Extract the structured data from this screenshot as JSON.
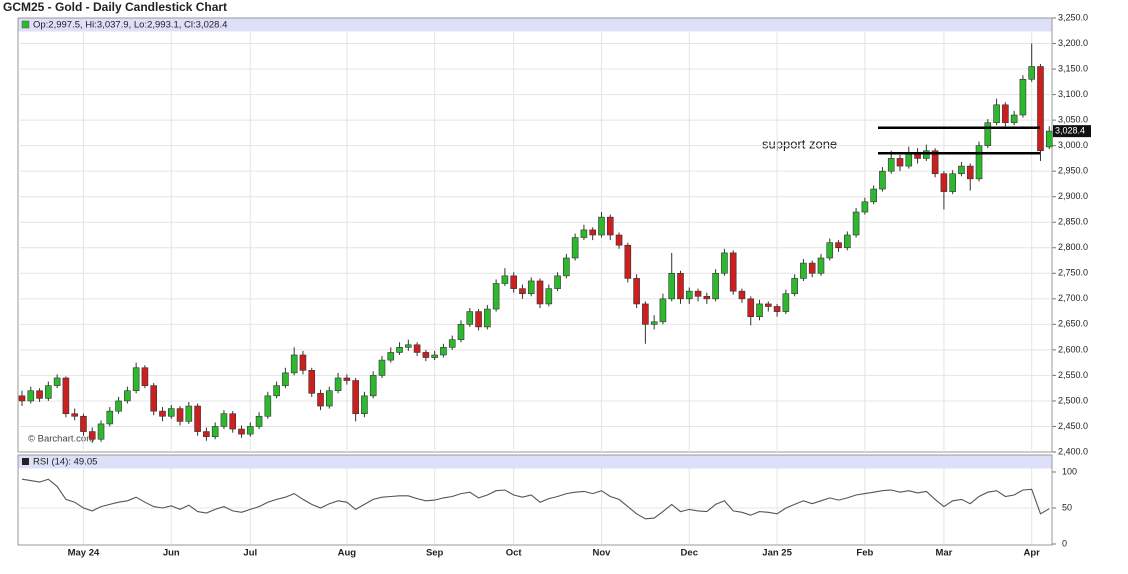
{
  "title": "GCM25 - Gold - Daily Candlestick Chart",
  "chart_data": {
    "type": "candlestick",
    "legend": "Op:2,997.5, Hi:3,037.9, Lo:2,993.1, Cl:3,028.4",
    "categories": [
      null,
      null,
      null,
      null,
      null,
      null,
      null,
      "May 24",
      null,
      null,
      null,
      null,
      null,
      null,
      null,
      null,
      null,
      "Jun",
      null,
      null,
      null,
      null,
      null,
      null,
      null,
      null,
      "Jul",
      null,
      null,
      null,
      null,
      null,
      null,
      null,
      null,
      null,
      null,
      "Aug",
      null,
      null,
      null,
      null,
      null,
      null,
      null,
      null,
      null,
      "Sep",
      null,
      null,
      null,
      null,
      null,
      null,
      null,
      null,
      "Oct",
      null,
      null,
      null,
      null,
      null,
      null,
      null,
      null,
      null,
      "Nov",
      null,
      null,
      null,
      null,
      null,
      null,
      null,
      null,
      null,
      "Dec",
      null,
      null,
      null,
      null,
      null,
      null,
      null,
      null,
      null,
      "Jan 25",
      null,
      null,
      null,
      null,
      null,
      null,
      null,
      null,
      null,
      "Feb",
      null,
      null,
      null,
      null,
      null,
      null,
      null,
      null,
      "Mar",
      null,
      null,
      null,
      null,
      null,
      null,
      null,
      null,
      null,
      "Apr",
      null,
      null
    ],
    "open": [
      2510,
      2500,
      2520,
      2505,
      2530,
      2545,
      2475,
      2470,
      2440,
      2425,
      2455,
      2480,
      2500,
      2520,
      2565,
      2530,
      2480,
      2470,
      2485,
      2460,
      2490,
      2440,
      2430,
      2450,
      2475,
      2445,
      2435,
      2450,
      2470,
      2510,
      2530,
      2555,
      2590,
      2560,
      2515,
      2490,
      2520,
      2545,
      2540,
      2475,
      2510,
      2550,
      2580,
      2595,
      2605,
      2610,
      2595,
      2585,
      2590,
      2605,
      2620,
      2650,
      2675,
      2645,
      2680,
      2730,
      2745,
      2720,
      2710,
      2735,
      2690,
      2720,
      2745,
      2780,
      2820,
      2835,
      2825,
      2860,
      2825,
      2805,
      2740,
      2690,
      2650,
      2655,
      2700,
      2750,
      2700,
      2715,
      2705,
      2700,
      2750,
      2790,
      2715,
      2700,
      2665,
      2690,
      2685,
      2675,
      2710,
      2740,
      2770,
      2750,
      2780,
      2810,
      2800,
      2825,
      2870,
      2890,
      2915,
      2950,
      2975,
      2960,
      2985,
      2975,
      2990,
      2945,
      2910,
      2945,
      2960,
      2935,
      3000,
      3045,
      3080,
      3045,
      3060,
      3130,
      3155,
      2997.5
    ],
    "high": [
      2520,
      2528,
      2525,
      2538,
      2552,
      2548,
      2485,
      2475,
      2448,
      2462,
      2488,
      2508,
      2528,
      2575,
      2570,
      2535,
      2488,
      2492,
      2490,
      2498,
      2495,
      2448,
      2458,
      2482,
      2480,
      2452,
      2458,
      2478,
      2518,
      2538,
      2565,
      2605,
      2598,
      2565,
      2522,
      2528,
      2555,
      2552,
      2545,
      2518,
      2558,
      2588,
      2605,
      2615,
      2620,
      2615,
      2600,
      2598,
      2612,
      2628,
      2658,
      2682,
      2680,
      2688,
      2738,
      2760,
      2752,
      2728,
      2742,
      2740,
      2728,
      2752,
      2788,
      2828,
      2845,
      2840,
      2870,
      2865,
      2830,
      2810,
      2748,
      2695,
      2668,
      2710,
      2790,
      2755,
      2722,
      2720,
      2712,
      2758,
      2798,
      2795,
      2720,
      2705,
      2698,
      2695,
      2690,
      2718,
      2748,
      2778,
      2775,
      2788,
      2818,
      2815,
      2832,
      2878,
      2898,
      2922,
      2958,
      2990,
      2982,
      2998,
      2995,
      3002,
      2995,
      2950,
      2952,
      2968,
      2965,
      3008,
      3052,
      3092,
      3085,
      3068,
      3138,
      3200,
      3160,
      3037.9
    ],
    "low": [
      2490,
      2495,
      2498,
      2500,
      2525,
      2468,
      2462,
      2432,
      2418,
      2420,
      2450,
      2475,
      2495,
      2515,
      2525,
      2472,
      2460,
      2465,
      2452,
      2455,
      2432,
      2422,
      2425,
      2445,
      2438,
      2428,
      2430,
      2445,
      2465,
      2505,
      2525,
      2550,
      2552,
      2508,
      2482,
      2485,
      2515,
      2532,
      2460,
      2468,
      2505,
      2545,
      2575,
      2590,
      2598,
      2588,
      2578,
      2580,
      2585,
      2600,
      2615,
      2645,
      2638,
      2640,
      2675,
      2725,
      2712,
      2700,
      2705,
      2682,
      2685,
      2715,
      2740,
      2775,
      2815,
      2815,
      2820,
      2815,
      2798,
      2732,
      2682,
      2612,
      2640,
      2650,
      2695,
      2690,
      2690,
      2695,
      2690,
      2695,
      2745,
      2708,
      2692,
      2648,
      2658,
      2675,
      2665,
      2670,
      2705,
      2735,
      2742,
      2745,
      2775,
      2792,
      2795,
      2820,
      2865,
      2885,
      2910,
      2945,
      2950,
      2955,
      2965,
      2970,
      2938,
      2875,
      2905,
      2940,
      2912,
      2930,
      2995,
      3040,
      3038,
      3040,
      3055,
      3125,
      2970,
      2993.1
    ],
    "close": [
      2500,
      2520,
      2505,
      2530,
      2545,
      2475,
      2470,
      2440,
      2425,
      2455,
      2480,
      2500,
      2520,
      2565,
      2530,
      2480,
      2470,
      2485,
      2460,
      2490,
      2440,
      2430,
      2450,
      2475,
      2445,
      2435,
      2450,
      2470,
      2510,
      2530,
      2555,
      2590,
      2560,
      2515,
      2490,
      2520,
      2545,
      2540,
      2475,
      2510,
      2550,
      2580,
      2595,
      2605,
      2610,
      2595,
      2585,
      2590,
      2605,
      2620,
      2650,
      2675,
      2645,
      2680,
      2730,
      2745,
      2720,
      2710,
      2735,
      2690,
      2720,
      2745,
      2780,
      2820,
      2835,
      2825,
      2860,
      2825,
      2805,
      2740,
      2690,
      2650,
      2655,
      2700,
      2750,
      2700,
      2715,
      2705,
      2700,
      2750,
      2790,
      2715,
      2700,
      2665,
      2690,
      2685,
      2675,
      2710,
      2740,
      2770,
      2750,
      2780,
      2810,
      2800,
      2825,
      2870,
      2890,
      2915,
      2950,
      2975,
      2960,
      2985,
      2975,
      2990,
      2945,
      2910,
      2945,
      2960,
      2935,
      3000,
      3045,
      3080,
      3045,
      3060,
      3130,
      3155,
      2990,
      3028.4
    ],
    "up_color": "#2eb82e",
    "down_color": "#cc1f1f",
    "ylim": [
      2400,
      3250
    ],
    "yticks": [
      {
        "value": 2400,
        "label": "2,400.0"
      },
      {
        "value": 2450,
        "label": "2,450.0"
      },
      {
        "value": 2500,
        "label": "2,500.0"
      },
      {
        "value": 2550,
        "label": "2,550.0"
      },
      {
        "value": 2600,
        "label": "2,600.0"
      },
      {
        "value": 2650,
        "label": "2,650.0"
      },
      {
        "value": 2700,
        "label": "2,700.0"
      },
      {
        "value": 2750,
        "label": "2,750.0"
      },
      {
        "value": 2800,
        "label": "2,800.0"
      },
      {
        "value": 2850,
        "label": "2,850.0"
      },
      {
        "value": 2900,
        "label": "2,900.0"
      },
      {
        "value": 2950,
        "label": "2,950.0"
      },
      {
        "value": 3000,
        "label": "3,000.0"
      },
      {
        "value": 3050,
        "label": "3,050.0"
      },
      {
        "value": 3100,
        "label": "3,100.0"
      },
      {
        "value": 3150,
        "label": "3,150.0"
      },
      {
        "value": 3200,
        "label": "3,200.0"
      },
      {
        "value": 3250,
        "label": "3,250.0"
      }
    ],
    "last_label": "3,028.4",
    "watermark": "© Barchart.com",
    "annotation": {
      "text": "support zone",
      "levels": [
        3035,
        2985
      ]
    },
    "rsi": {
      "label": "RSI (14): 49.05",
      "color": "#555555",
      "ylim": [
        0,
        100
      ],
      "yticks": [
        0,
        50,
        100
      ],
      "values": [
        90,
        88,
        86,
        90,
        80,
        62,
        58,
        50,
        46,
        52,
        55,
        58,
        60,
        65,
        58,
        52,
        50,
        53,
        48,
        54,
        45,
        43,
        48,
        52,
        46,
        44,
        48,
        52,
        58,
        62,
        65,
        70,
        62,
        55,
        50,
        56,
        60,
        58,
        48,
        55,
        62,
        65,
        66,
        67,
        67,
        63,
        60,
        61,
        64,
        66,
        70,
        72,
        64,
        68,
        74,
        75,
        68,
        65,
        68,
        58,
        63,
        66,
        70,
        72,
        73,
        70,
        74,
        66,
        62,
        52,
        42,
        35,
        36,
        45,
        55,
        45,
        48,
        46,
        45,
        55,
        60,
        46,
        44,
        40,
        45,
        44,
        42,
        50,
        55,
        60,
        56,
        60,
        64,
        61,
        64,
        68,
        70,
        72,
        74,
        75,
        72,
        74,
        71,
        73,
        62,
        52,
        60,
        62,
        56,
        66,
        72,
        74,
        66,
        68,
        75,
        76,
        42,
        49.05
      ]
    }
  }
}
